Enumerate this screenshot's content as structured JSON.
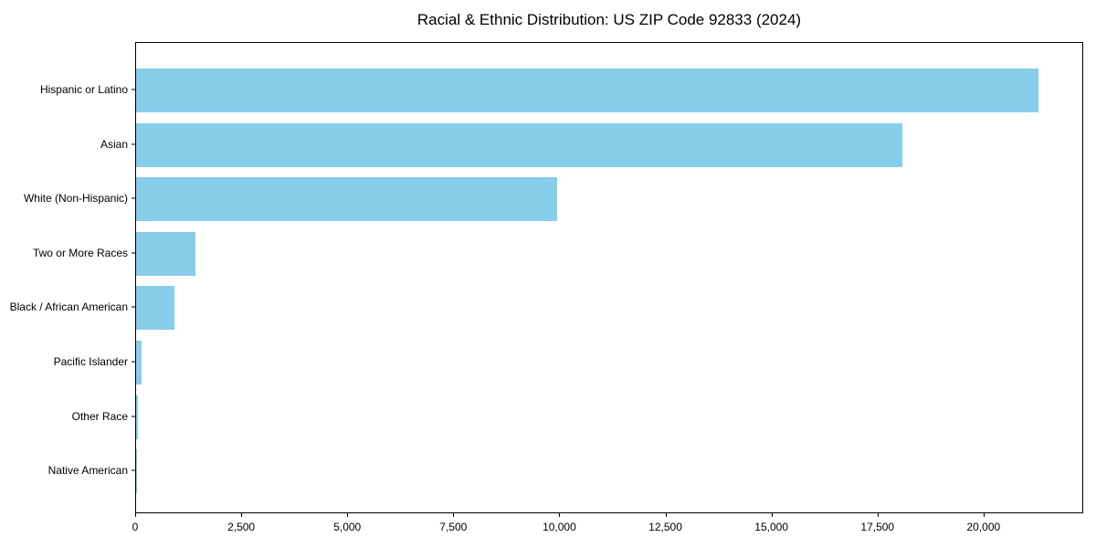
{
  "chart_data": {
    "type": "bar",
    "orientation": "horizontal",
    "title": "Racial & Ethnic Distribution: US ZIP Code 92833 (2024)",
    "xlabel": "",
    "ylabel": "",
    "categories": [
      "Hispanic or Latino",
      "Asian",
      "White (Non-Hispanic)",
      "Two or More Races",
      "Black / African American",
      "Pacific Islander",
      "Other Race",
      "Native American"
    ],
    "values": [
      21280,
      18070,
      9920,
      1390,
      900,
      130,
      50,
      15
    ],
    "xlim": [
      0,
      22350
    ],
    "x_ticks": [
      {
        "value": 0,
        "label": "0"
      },
      {
        "value": 2500,
        "label": "2,500"
      },
      {
        "value": 5000,
        "label": "5,000"
      },
      {
        "value": 7500,
        "label": "7,500"
      },
      {
        "value": 10000,
        "label": "10,000"
      },
      {
        "value": 12500,
        "label": "12,500"
      },
      {
        "value": 15000,
        "label": "15,000"
      },
      {
        "value": 17500,
        "label": "17,500"
      },
      {
        "value": 20000,
        "label": "20,000"
      }
    ],
    "grid": false,
    "legend": "none",
    "bar_color": "#87CEEB",
    "text_color": "#000000",
    "spine_color": "#000000"
  }
}
